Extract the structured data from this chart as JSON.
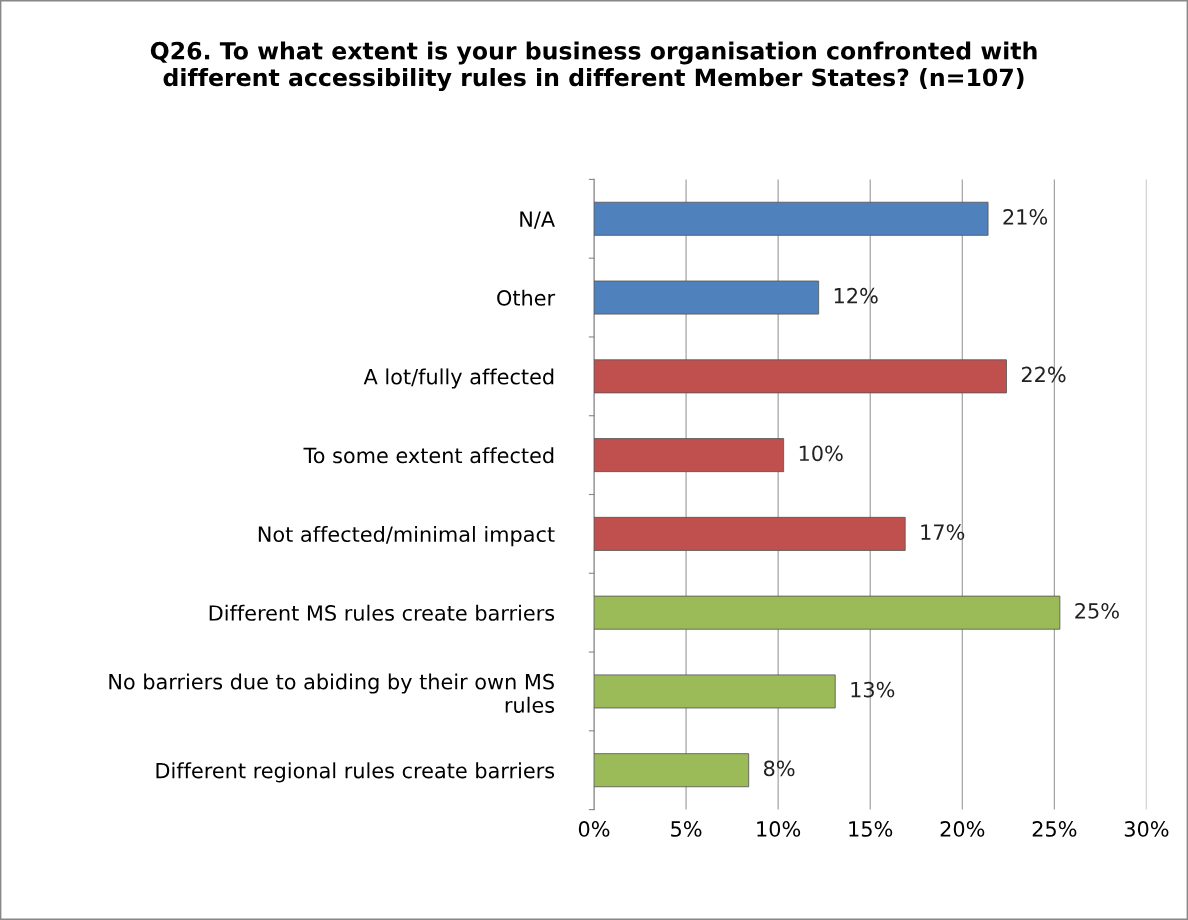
{
  "chart_data": {
    "type": "bar",
    "orientation": "horizontal",
    "title": "Q26. To what extent is your business organisation confronted with\ndifferent accessibility rules in different Member States? (n=107)",
    "categories": [
      "N/A",
      "Other",
      "A lot/fully affected",
      "To some extent affected",
      "Not affected/minimal impact",
      "Different MS rules create barriers",
      "No barriers due to abiding by their own MS\nrules",
      "Different regional rules create barriers"
    ],
    "values": [
      21.4,
      12.2,
      22.4,
      10.3,
      16.9,
      25.3,
      13.1,
      8.4
    ],
    "value_labels": [
      "21%",
      "12%",
      "22%",
      "10%",
      "17%",
      "25%",
      "13%",
      "8%"
    ],
    "colors": [
      "#4f81bd",
      "#4f81bd",
      "#c0504d",
      "#c0504d",
      "#c0504d",
      "#9bbb59",
      "#9bbb59",
      "#9bbb59"
    ],
    "xlim": [
      0,
      30
    ],
    "xticks": [
      {
        "value": 0,
        "label": "0%"
      },
      {
        "value": 5,
        "label": "5%"
      },
      {
        "value": 10,
        "label": "10%"
      },
      {
        "value": 15,
        "label": "15%"
      },
      {
        "value": 20,
        "label": "20%"
      },
      {
        "value": 25,
        "label": "25%"
      },
      {
        "value": 30,
        "label": "30%"
      }
    ],
    "grid": "x"
  }
}
